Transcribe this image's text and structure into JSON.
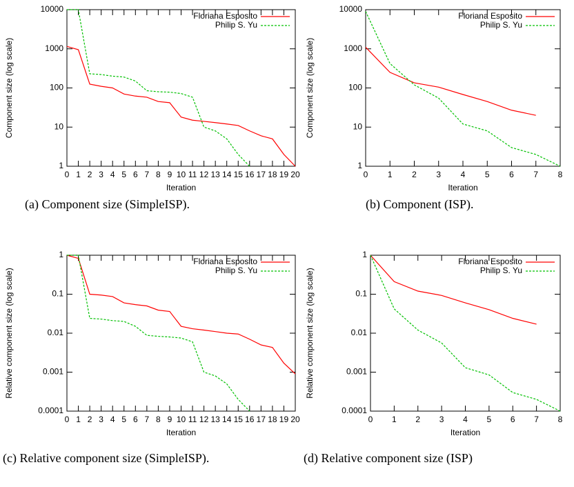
{
  "chart_data": [
    {
      "type": "line",
      "caption": "(a) Component size (SimpleISP).",
      "xlabel": "Iteration",
      "ylabel": "Component size (log scale)",
      "yscale": "log",
      "x": [
        0,
        1,
        2,
        3,
        4,
        5,
        6,
        7,
        8,
        9,
        10,
        11,
        12,
        13,
        14,
        15,
        16,
        17,
        18,
        19,
        20
      ],
      "xlim": [
        0,
        20
      ],
      "xticks": [
        0,
        1,
        2,
        3,
        4,
        5,
        6,
        7,
        8,
        9,
        10,
        11,
        12,
        13,
        14,
        15,
        16,
        17,
        18,
        19,
        20
      ],
      "ylim": [
        1,
        10000
      ],
      "yticks": [
        1,
        10,
        100,
        1000,
        10000
      ],
      "legend": "upper right",
      "series": [
        {
          "name": "Floriana Esposito",
          "color": "#ff0000",
          "line_style": "solid",
          "values": [
            1150,
            950,
            125,
            110,
            100,
            70,
            62,
            58,
            45,
            42,
            18,
            15,
            14,
            13,
            12,
            11,
            8,
            6,
            5,
            2,
            1
          ]
        },
        {
          "name": "Philip S. Yu",
          "color": "#00c000",
          "line_style": "dashed",
          "values": [
            10000,
            10000,
            230,
            220,
            200,
            190,
            150,
            85,
            80,
            78,
            72,
            58,
            10,
            8,
            5,
            2,
            1,
            null,
            null,
            null,
            null
          ]
        }
      ]
    },
    {
      "type": "line",
      "caption": "(b) Component (ISP).",
      "xlabel": "Iteration",
      "ylabel": "Component size (log scale)",
      "yscale": "log",
      "x": [
        0,
        1,
        2,
        3,
        4,
        5,
        6,
        7,
        8
      ],
      "xlim": [
        0,
        8
      ],
      "xticks": [
        0,
        1,
        2,
        3,
        4,
        5,
        6,
        7,
        8
      ],
      "ylim": [
        1,
        10000
      ],
      "yticks": [
        1,
        10,
        100,
        1000,
        10000
      ],
      "legend": "upper right",
      "series": [
        {
          "name": "Floriana Esposito",
          "color": "#ff0000",
          "line_style": "solid",
          "values": [
            1100,
            250,
            135,
            105,
            68,
            45,
            27,
            20,
            null
          ]
        },
        {
          "name": "Philip S. Yu",
          "color": "#00c000",
          "line_style": "dashed",
          "values": [
            9000,
            420,
            120,
            55,
            12,
            8,
            3,
            2,
            1
          ]
        }
      ]
    },
    {
      "type": "line",
      "caption": "(c) Relative component size (SimpleISP).",
      "xlabel": "Iteration",
      "ylabel": "Relative component size (log scale)",
      "yscale": "log",
      "x": [
        0,
        1,
        2,
        3,
        4,
        5,
        6,
        7,
        8,
        9,
        10,
        11,
        12,
        13,
        14,
        15,
        16,
        17,
        18,
        19,
        20
      ],
      "xlim": [
        0,
        20
      ],
      "xticks": [
        0,
        1,
        2,
        3,
        4,
        5,
        6,
        7,
        8,
        9,
        10,
        11,
        12,
        13,
        14,
        15,
        16,
        17,
        18,
        19,
        20
      ],
      "ylim": [
        0.0001,
        1
      ],
      "yticks": [
        0.0001,
        0.001,
        0.01,
        0.1,
        1
      ],
      "legend": "upper right",
      "series": [
        {
          "name": "Floriana Esposito",
          "color": "#ff0000",
          "line_style": "solid",
          "values": [
            1,
            0.83,
            0.1,
            0.095,
            0.087,
            0.06,
            0.054,
            0.05,
            0.039,
            0.036,
            0.015,
            0.013,
            0.012,
            0.011,
            0.01,
            0.0095,
            0.007,
            0.005,
            0.0043,
            0.0017,
            0.0009
          ]
        },
        {
          "name": "Philip S. Yu",
          "color": "#00c000",
          "line_style": "dashed",
          "values": [
            1,
            1,
            0.024,
            0.023,
            0.021,
            0.02,
            0.015,
            0.0088,
            0.0083,
            0.008,
            0.0075,
            0.006,
            0.001,
            0.0008,
            0.0005,
            0.0002,
            0.0001,
            null,
            null,
            null,
            null
          ]
        }
      ]
    },
    {
      "type": "line",
      "caption": "(d) Relative component size (ISP)",
      "xlabel": "Iteration",
      "ylabel": "Relative component size (log scale)",
      "yscale": "log",
      "x": [
        0,
        1,
        2,
        3,
        4,
        5,
        6,
        7,
        8
      ],
      "xlim": [
        0,
        8
      ],
      "xticks": [
        0,
        1,
        2,
        3,
        4,
        5,
        6,
        7,
        8
      ],
      "ylim": [
        0.0001,
        1
      ],
      "yticks": [
        0.0001,
        0.001,
        0.01,
        0.1,
        1
      ],
      "legend": "upper right",
      "series": [
        {
          "name": "Floriana Esposito",
          "color": "#ff0000",
          "line_style": "solid",
          "values": [
            1,
            0.21,
            0.12,
            0.093,
            0.06,
            0.04,
            0.024,
            0.017,
            null
          ]
        },
        {
          "name": "Philip S. Yu",
          "color": "#00c000",
          "line_style": "dashed",
          "values": [
            1,
            0.042,
            0.012,
            0.0056,
            0.0013,
            0.00085,
            0.0003,
            0.0002,
            0.0001
          ]
        }
      ]
    }
  ]
}
